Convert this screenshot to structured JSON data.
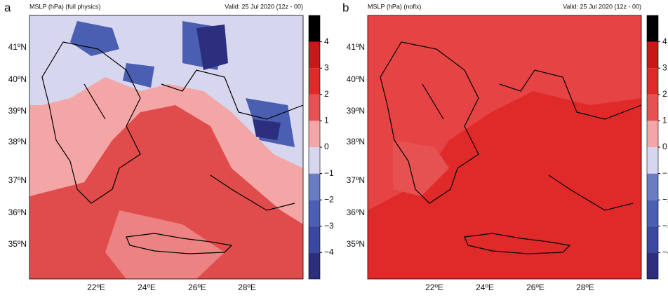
{
  "panels": [
    {
      "label": "a",
      "title": "MSLP (hPa) (full physics)",
      "valid": "Valid: 25 Jul 2020 (12z - 00)",
      "lat_labels": [
        "41ºN",
        "40ºN",
        "39ºN",
        "38ºN",
        "37ºN",
        "36ºN",
        "35ºN"
      ],
      "lon_labels": [
        "22ºE",
        "24ºE",
        "26ºE",
        "28ºE"
      ]
    },
    {
      "label": "b",
      "title": "MSLP (hPa) (noflx)",
      "valid": "Valid: 25 Jul 2020 (12z - 00)",
      "lat_labels": [
        "41ºN",
        "40ºN",
        "39ºN",
        "38ºN",
        "37ºN",
        "36ºN",
        "35ºN"
      ],
      "lon_labels": [
        "22ºE",
        "24ºE",
        "26ºE",
        "28ºE"
      ]
    }
  ],
  "colorbar": {
    "lim": [
      -5,
      5
    ],
    "colors": [
      "#2b2f7e",
      "#3a48a0",
      "#4a5fb2",
      "#6a7cc2",
      "#d6d6ee",
      "#f4a6a6",
      "#e65252",
      "#e02a2a",
      "#c81818",
      "#000000"
    ],
    "ticks": [
      {
        "value": -4,
        "label": "−4"
      },
      {
        "value": -3,
        "label": "−3"
      },
      {
        "value": -2,
        "label": "−2"
      },
      {
        "value": -1,
        "label": "−1"
      },
      0,
      1,
      2,
      3,
      4
    ]
  }
}
